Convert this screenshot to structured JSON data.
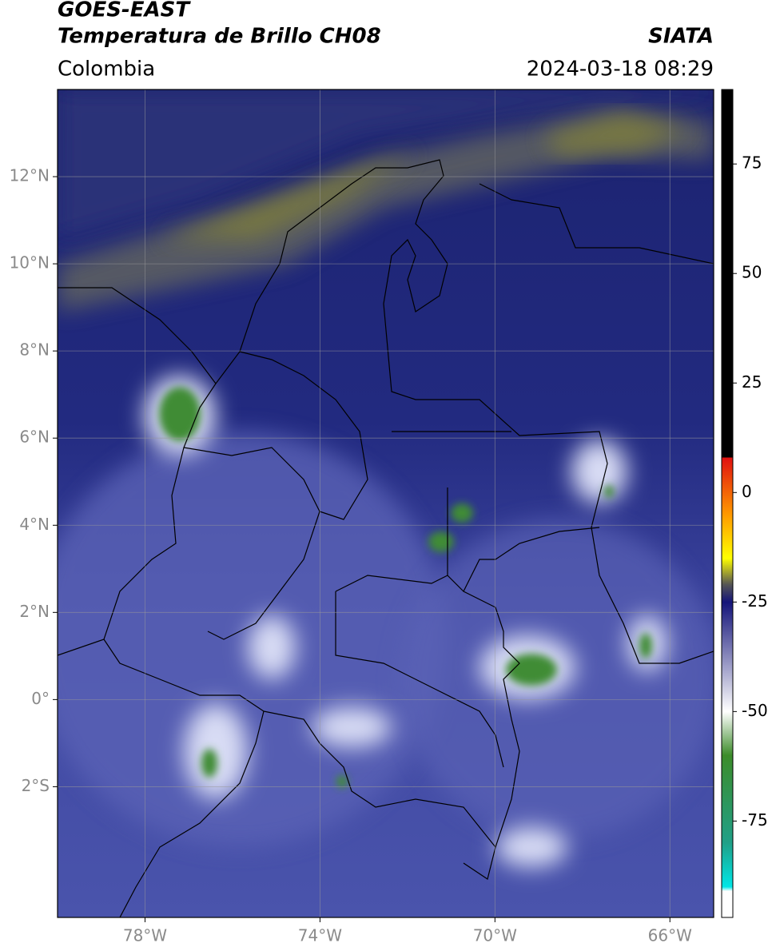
{
  "map": {
    "title": "GOES-EAST",
    "subtitle": "Temperatura de Brillo CH08",
    "source": "SIATA",
    "region": "Colombia",
    "datetime": "2024-03-18 08:29",
    "xlim": [
      -80,
      -65
    ],
    "ylim": [
      -5,
      14
    ],
    "xticks": [
      {
        "value": -78,
        "label": "78°W"
      },
      {
        "value": -74,
        "label": "74°W"
      },
      {
        "value": -70,
        "label": "70°W"
      },
      {
        "value": -66,
        "label": "66°W"
      }
    ],
    "yticks": [
      {
        "value": 12,
        "label": "12°N"
      },
      {
        "value": 10,
        "label": "10°N"
      },
      {
        "value": 8,
        "label": "8°N"
      },
      {
        "value": 6,
        "label": "6°N"
      },
      {
        "value": 4,
        "label": "4°N"
      },
      {
        "value": 2,
        "label": "2°N"
      },
      {
        "value": 0,
        "label": "0°"
      },
      {
        "value": -2,
        "label": "2°S"
      }
    ],
    "grid": true,
    "colorbar": {
      "lim": [
        -97,
        92
      ],
      "ticks": [
        75,
        50,
        25,
        0,
        -25,
        -50,
        -75
      ],
      "stops": [
        {
          "value": 92,
          "color": "#000000"
        },
        {
          "value": 8,
          "color": "#000000"
        },
        {
          "value": 8,
          "color": "#e01010"
        },
        {
          "value": -5,
          "color": "#ff9900"
        },
        {
          "value": -15,
          "color": "#ffff00"
        },
        {
          "value": -21,
          "color": "#555555"
        },
        {
          "value": -25,
          "color": "#14147a"
        },
        {
          "value": -50,
          "color": "#ffffff"
        },
        {
          "value": -60,
          "color": "#3c8c2a"
        },
        {
          "value": -80,
          "color": "#20a088"
        },
        {
          "value": -90,
          "color": "#00e6e6"
        },
        {
          "value": -91,
          "color": "#ffffff"
        },
        {
          "value": -97,
          "color": "#ffffff"
        }
      ]
    }
  }
}
